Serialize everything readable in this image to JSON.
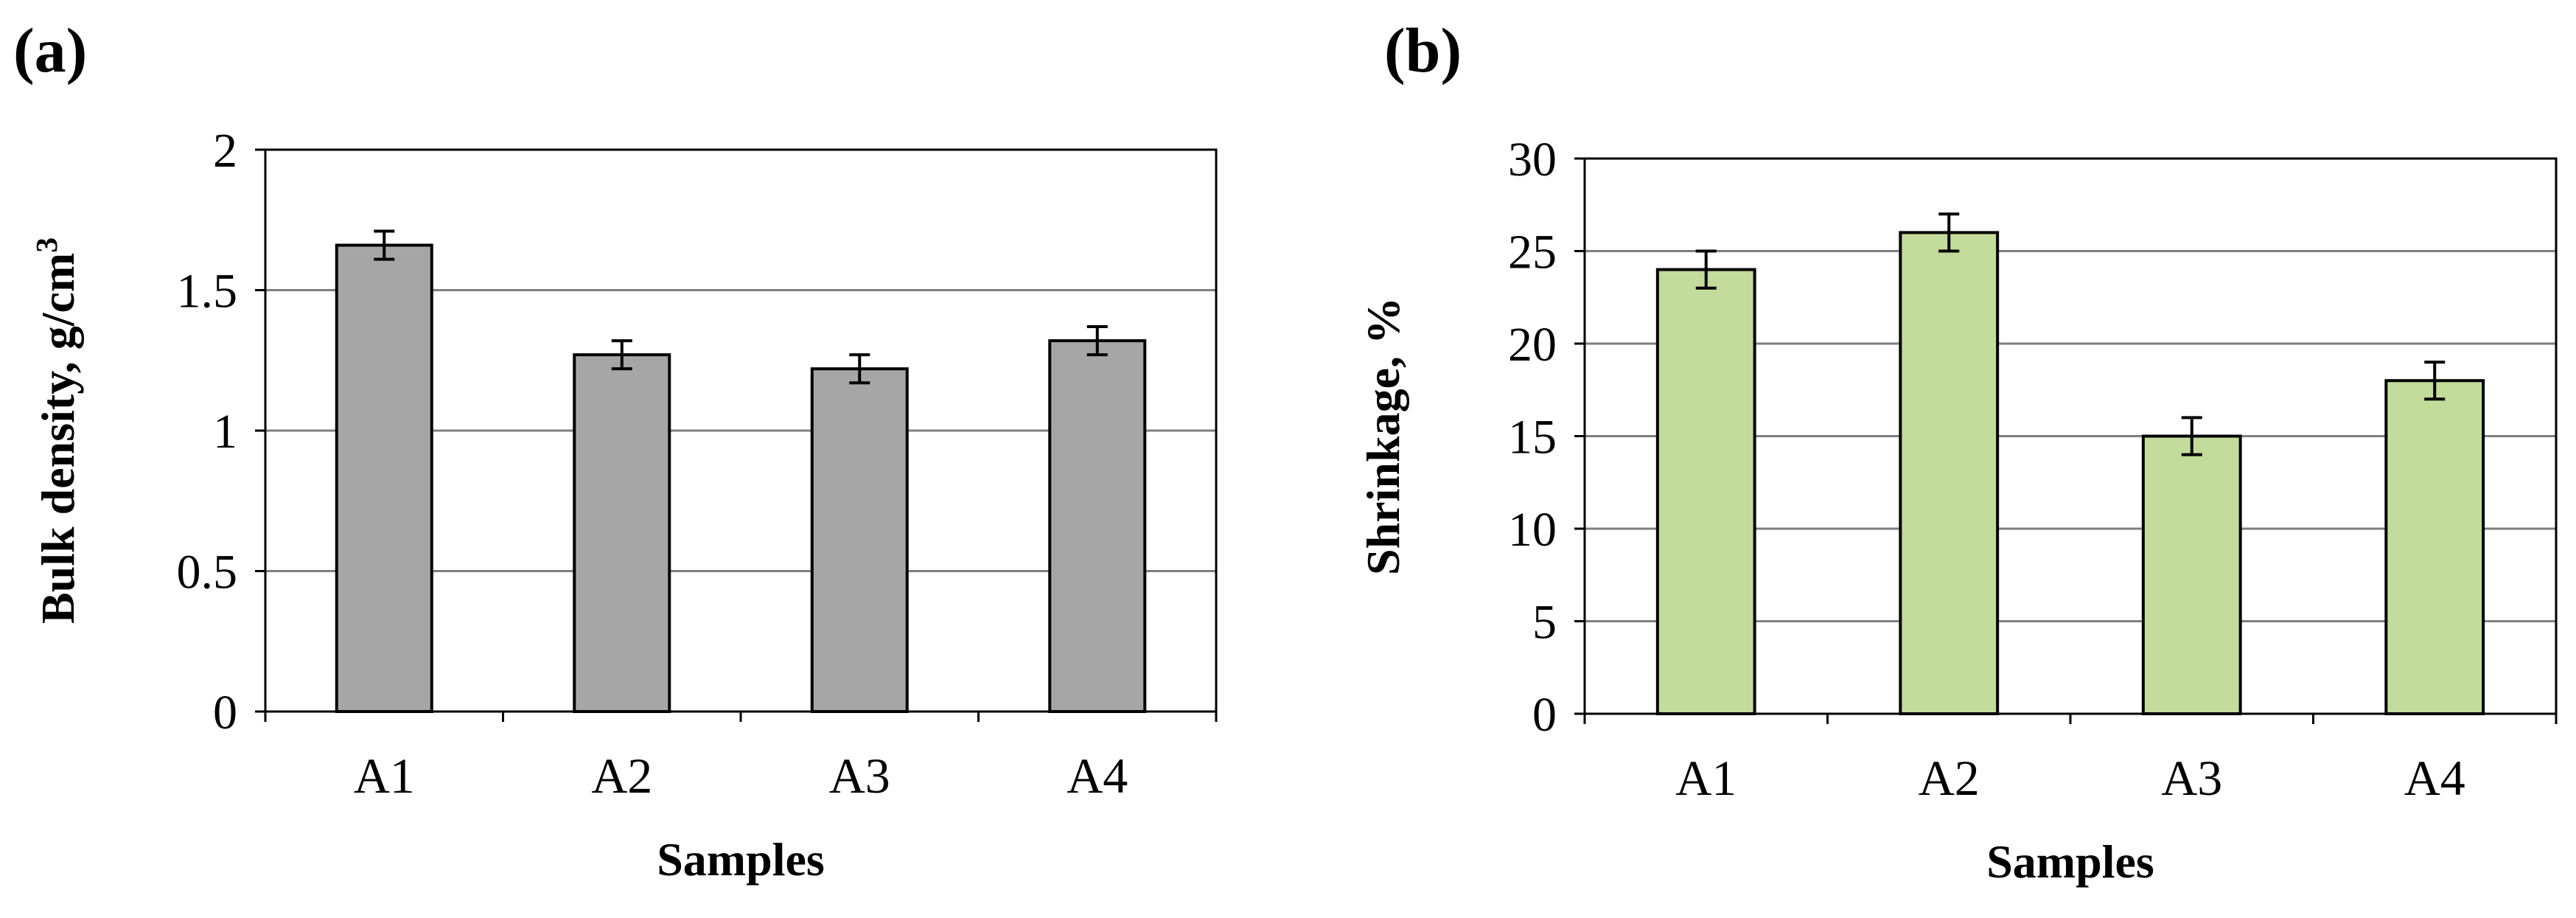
{
  "figure": {
    "panel_a_label": "(a)",
    "panel_b_label": "(b)"
  },
  "chart_data": [
    {
      "type": "bar",
      "title": "",
      "xlabel": "Samples",
      "ylabel": "Bulk density, g/cm",
      "ylabel_superscript": "3",
      "categories": [
        "A1",
        "A2",
        "A3",
        "A4"
      ],
      "values": [
        1.66,
        1.27,
        1.22,
        1.32
      ],
      "errors": [
        0.05,
        0.05,
        0.05,
        0.05
      ],
      "ylim": [
        0,
        2
      ],
      "yticks": [
        0,
        0.5,
        1,
        1.5,
        2
      ],
      "ytick_labels": [
        "0",
        "0.5",
        "1",
        "1.5",
        "2"
      ],
      "grid": true,
      "bar_color": "#a6a6a6"
    },
    {
      "type": "bar",
      "title": "",
      "xlabel": "Samples",
      "ylabel": "Shrinkage, %",
      "categories": [
        "A1",
        "A2",
        "A3",
        "A4"
      ],
      "values": [
        24,
        26,
        15,
        18
      ],
      "errors": [
        1,
        1,
        1,
        1
      ],
      "ylim": [
        0,
        30
      ],
      "yticks": [
        0,
        5,
        10,
        15,
        20,
        25,
        30
      ],
      "ytick_labels": [
        "0",
        "5",
        "10",
        "15",
        "20",
        "25",
        "30"
      ],
      "grid": true,
      "bar_color": "#c3db9b"
    }
  ]
}
